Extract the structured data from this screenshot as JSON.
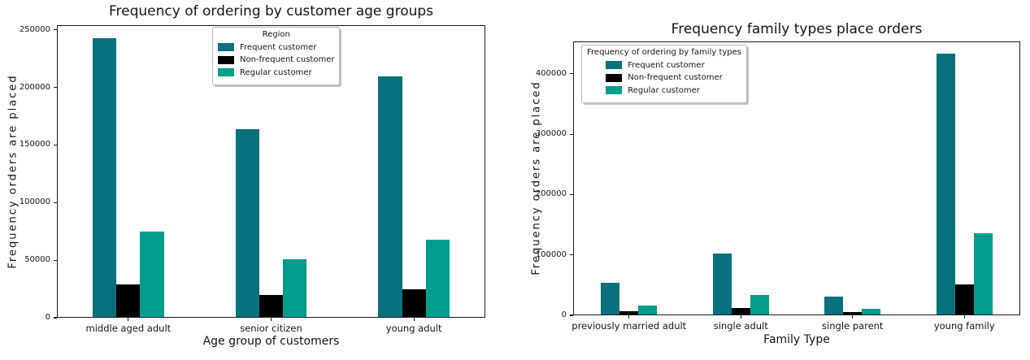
{
  "page": {
    "background": "#ffffff",
    "text_color": "#151515"
  },
  "chart_data": [
    {
      "type": "bar",
      "title": "Frequency of ordering by customer age groups",
      "xlabel": "Age group of customers",
      "ylabel": "Frequency orders are placed",
      "legend_title": "Region",
      "legend_position": "upper center",
      "grid": false,
      "categories": [
        "middle aged adult",
        "senior citizen",
        "young adult"
      ],
      "series": [
        {
          "name": "Frequent customer",
          "color": "#09707e",
          "values": [
            242000,
            163000,
            209000
          ]
        },
        {
          "name": "Non-frequent customer",
          "color": "#000000",
          "values": [
            28000,
            19000,
            24000
          ]
        },
        {
          "name": "Regular customer",
          "color": "#029d8d",
          "values": [
            74000,
            50000,
            67000
          ]
        }
      ],
      "yticks": [
        0,
        50000,
        100000,
        150000,
        200000,
        250000
      ],
      "ylim": [
        0,
        254100
      ]
    },
    {
      "type": "bar",
      "title": "Frequency family types place orders",
      "xlabel": "Family Type",
      "ylabel": "Frequency orders are placed",
      "legend_title": "Frequency of ordering by family types",
      "legend_position": "upper left",
      "grid": false,
      "categories": [
        "previously married adult",
        "single adult",
        "single parent",
        "young family"
      ],
      "series": [
        {
          "name": "Frequent customer",
          "color": "#09707e",
          "values": [
            52000,
            101000,
            29000,
            432000
          ]
        },
        {
          "name": "Non-frequent customer",
          "color": "#000000",
          "values": [
            6000,
            11000,
            4000,
            50000
          ]
        },
        {
          "name": "Regular customer",
          "color": "#029d8d",
          "values": [
            15000,
            32000,
            9000,
            135000
          ]
        }
      ],
      "yticks": [
        0,
        100000,
        200000,
        300000,
        400000
      ],
      "ylim": [
        0,
        453600
      ]
    }
  ]
}
